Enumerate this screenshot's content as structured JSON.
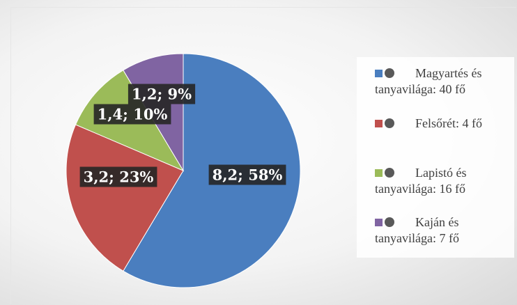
{
  "chart_data": {
    "type": "pie",
    "categories": [
      "Magyartés és tanyavilága: 40 fő",
      "Felsőrét: 4 fő",
      "Lapistó és tanyavilága: 16 fő",
      "Kaján és tanyavilága: 7 fő"
    ],
    "values": [
      8.2,
      3.2,
      1.4,
      1.2
    ],
    "value_labels": [
      "8,2; 58%",
      "3,2; 23%",
      "1,4; 10%",
      "1,2; 9%"
    ],
    "colors": [
      "#4a7ebf",
      "#c0504d",
      "#9bbb59",
      "#8064a2"
    ],
    "legend": "right"
  }
}
